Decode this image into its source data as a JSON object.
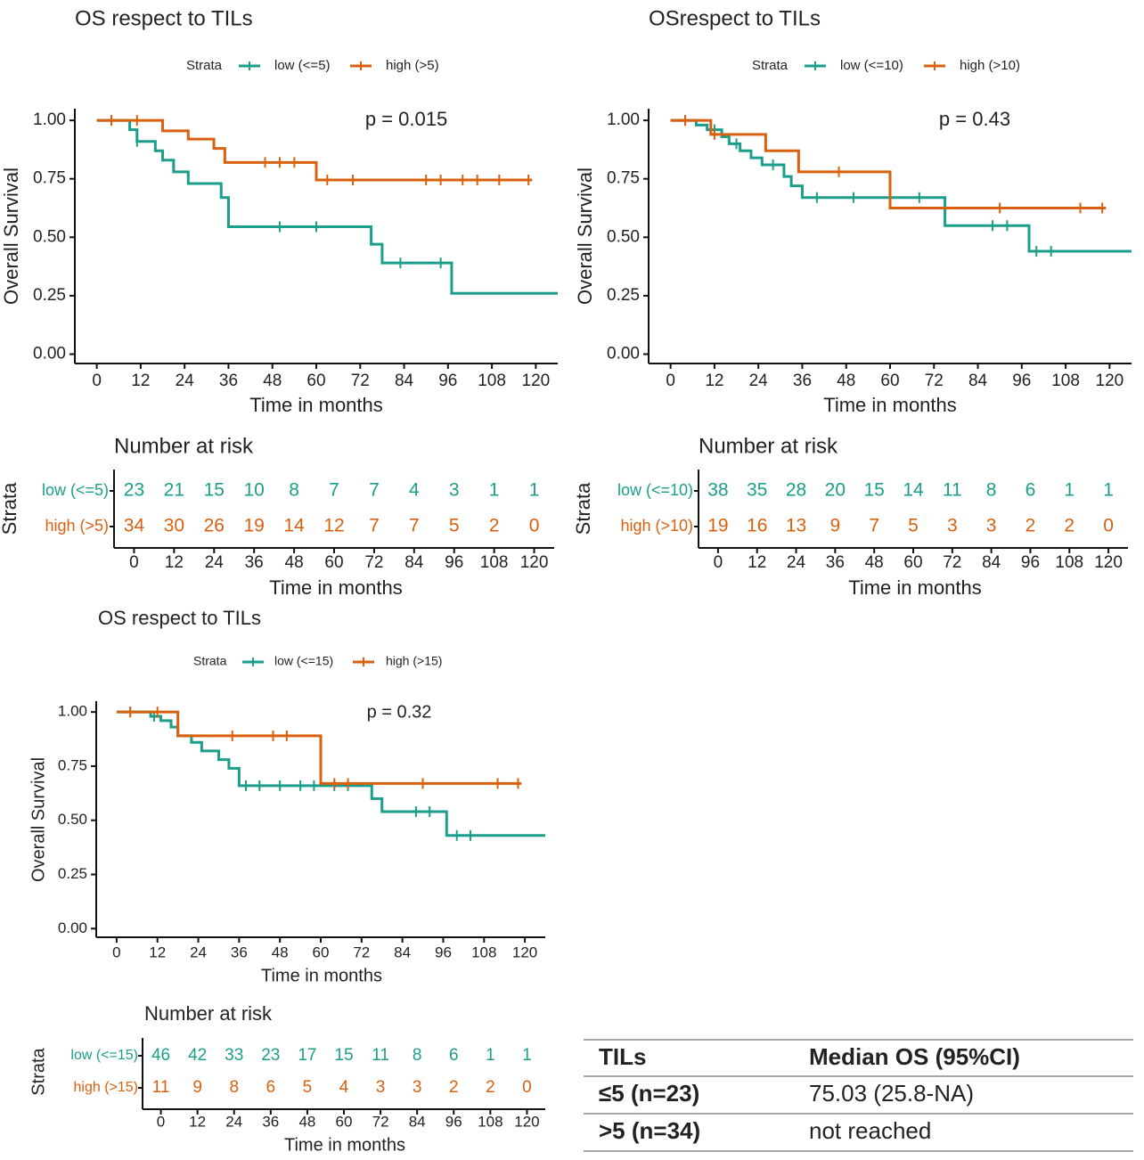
{
  "chart_data": [
    {
      "type": "step",
      "title": "OS respect to TILs",
      "legend_title": "Strata",
      "annotation": "p = 0.015",
      "xlabel": "Time in months",
      "ylabel": "Overall Survival",
      "xlim": [
        -6,
        126
      ],
      "ylim": [
        -0.04,
        1.05
      ],
      "xticks": [
        0,
        12,
        24,
        36,
        48,
        60,
        72,
        84,
        96,
        108,
        120
      ],
      "yticks": [
        {
          "value": 0,
          "label": "0.00"
        },
        {
          "value": 0.25,
          "label": "0.25"
        },
        {
          "value": 0.5,
          "label": "0.50"
        },
        {
          "value": 0.75,
          "label": "0.75"
        },
        {
          "value": 1,
          "label": "1.00"
        }
      ],
      "series": [
        {
          "name": "low (<=5)",
          "color": "#1b9e8a",
          "x": [
            0,
            9,
            11,
            16,
            18,
            21,
            25,
            34,
            36,
            75,
            78,
            97,
            126
          ],
          "values": [
            1,
            0.96,
            0.91,
            0.87,
            0.83,
            0.78,
            0.73,
            0.67,
            0.545,
            0.47,
            0.39,
            0.26,
            0.26
          ],
          "censored": [
            4,
            11,
            50,
            60,
            83,
            94
          ]
        },
        {
          "name": "high (>5)",
          "color": "#d9600f",
          "x": [
            0,
            18,
            25,
            32,
            35,
            60,
            119
          ],
          "values": [
            1,
            0.955,
            0.92,
            0.88,
            0.82,
            0.745,
            0.745
          ],
          "censored": [
            4,
            11,
            46,
            50,
            54,
            63,
            70,
            90,
            94,
            100,
            104,
            110,
            118
          ]
        }
      ],
      "risk_table": {
        "title": "Number at risk",
        "ylabel": "Strata",
        "xlabel": "Time in months",
        "counts": [
          [
            23,
            21,
            15,
            10,
            8,
            7,
            7,
            4,
            3,
            1,
            1
          ],
          [
            34,
            30,
            26,
            19,
            14,
            12,
            7,
            7,
            5,
            2,
            0
          ]
        ]
      }
    },
    {
      "type": "step",
      "title": "OSrespect to TILs",
      "legend_title": "Strata",
      "annotation": "p = 0.43",
      "xlabel": "Time in months",
      "ylabel": "Overall Survival",
      "xlim": [
        -6,
        126
      ],
      "ylim": [
        -0.04,
        1.05
      ],
      "xticks": [
        0,
        12,
        24,
        36,
        48,
        60,
        72,
        84,
        96,
        108,
        120
      ],
      "yticks": [
        {
          "value": 0,
          "label": "0.00"
        },
        {
          "value": 0.25,
          "label": "0.25"
        },
        {
          "value": 0.5,
          "label": "0.50"
        },
        {
          "value": 0.75,
          "label": "0.75"
        },
        {
          "value": 1,
          "label": "1.00"
        }
      ],
      "series": [
        {
          "name": "low (<=10)",
          "color": "#1b9e8a",
          "x": [
            0,
            7,
            10,
            14,
            16,
            19,
            22,
            25,
            31,
            33,
            36,
            75,
            98,
            126
          ],
          "values": [
            1,
            0.98,
            0.96,
            0.93,
            0.9,
            0.87,
            0.84,
            0.81,
            0.76,
            0.72,
            0.67,
            0.55,
            0.44,
            0.44
          ],
          "censored": [
            4,
            12,
            18,
            28,
            40,
            50,
            60,
            68,
            88,
            92,
            100,
            104
          ]
        },
        {
          "name": "high (>10)",
          "color": "#d9600f",
          "x": [
            0,
            11,
            26,
            35,
            60,
            119
          ],
          "values": [
            1,
            0.94,
            0.87,
            0.78,
            0.625,
            0.625
          ],
          "censored": [
            4,
            12,
            46,
            90,
            112,
            118
          ]
        }
      ],
      "risk_table": {
        "title": "Number at risk",
        "ylabel": "Strata",
        "xlabel": "Time in months",
        "counts": [
          [
            38,
            35,
            28,
            20,
            15,
            14,
            11,
            8,
            6,
            1,
            1
          ],
          [
            19,
            16,
            13,
            9,
            7,
            5,
            3,
            3,
            2,
            2,
            0
          ]
        ]
      }
    },
    {
      "type": "step",
      "title": "OS respect to TILs",
      "legend_title": "Strata",
      "annotation": "p = 0.32",
      "xlabel": "Time in months",
      "ylabel": "Overall Survival",
      "xlim": [
        -6,
        126
      ],
      "ylim": [
        -0.04,
        1.05
      ],
      "xticks": [
        0,
        12,
        24,
        36,
        48,
        60,
        72,
        84,
        96,
        108,
        120
      ],
      "yticks": [
        {
          "value": 0,
          "label": "0.00"
        },
        {
          "value": 0.25,
          "label": "0.25"
        },
        {
          "value": 0.5,
          "label": "0.50"
        },
        {
          "value": 0.75,
          "label": "0.75"
        },
        {
          "value": 1,
          "label": "1.00"
        }
      ],
      "series": [
        {
          "name": "low (<=15)",
          "color": "#1b9e8a",
          "x": [
            0,
            10,
            13,
            16,
            18,
            22,
            25,
            30,
            33,
            36,
            75,
            78,
            97,
            126
          ],
          "values": [
            1,
            0.98,
            0.96,
            0.93,
            0.89,
            0.86,
            0.82,
            0.78,
            0.74,
            0.66,
            0.6,
            0.54,
            0.43,
            0.43
          ],
          "censored": [
            4,
            11,
            38,
            42,
            48,
            54,
            58,
            64,
            68,
            88,
            92,
            100,
            104
          ]
        },
        {
          "name": "high (>15)",
          "color": "#d9600f",
          "x": [
            0,
            18,
            60,
            119
          ],
          "values": [
            1,
            0.89,
            0.67,
            0.67
          ],
          "censored": [
            4,
            12,
            34,
            46,
            50,
            64,
            68,
            90,
            112,
            118
          ]
        }
      ],
      "risk_table": {
        "title": "Number at risk",
        "ylabel": "Strata",
        "xlabel": "Time in months",
        "counts": [
          [
            46,
            42,
            33,
            23,
            17,
            15,
            11,
            8,
            6,
            1,
            1
          ],
          [
            11,
            9,
            8,
            6,
            5,
            4,
            3,
            3,
            2,
            2,
            0
          ]
        ]
      }
    }
  ],
  "table": {
    "header": [
      "TILs",
      "Median OS (95%CI)"
    ],
    "rows": [
      [
        "≤5 (n=23)",
        "75.03 (25.8-NA)"
      ],
      [
        ">5 (n=34)",
        "not reached"
      ]
    ]
  }
}
